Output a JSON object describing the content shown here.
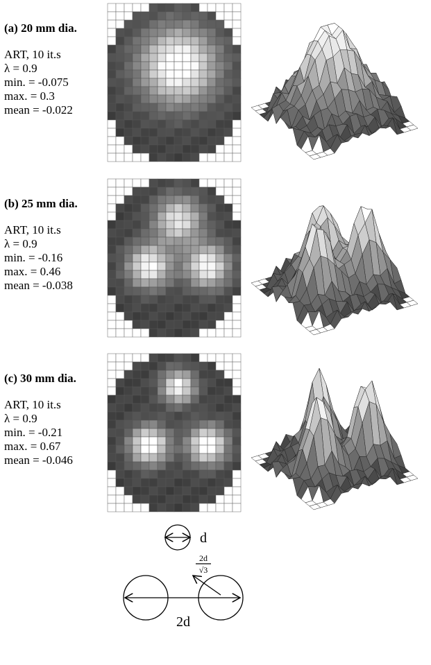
{
  "panels": [
    {
      "label": "(a) 20 mm dia.",
      "lines": [
        "ART,  10 it.s",
        "λ  = 0.9",
        "min. = -0.075",
        "max. = 0.3",
        "mean = -0.022"
      ]
    },
    {
      "label": "(b) 25 mm dia.",
      "lines": [
        "ART,  10 it.s",
        "λ  = 0.9",
        "min. = -0.16",
        "max. = 0.46",
        "mean = -0.038"
      ]
    },
    {
      "label": "(c) 30 mm dia.",
      "lines": [
        "ART,  10 it.s",
        "λ  = 0.9",
        "min. = -0.21",
        "max. = 0.67",
        "mean = -0.046"
      ]
    }
  ],
  "diagram": {
    "diameter": "d",
    "separation": "2d",
    "fraction_numerator": "2d",
    "fraction_denominator": "√3"
  }
}
